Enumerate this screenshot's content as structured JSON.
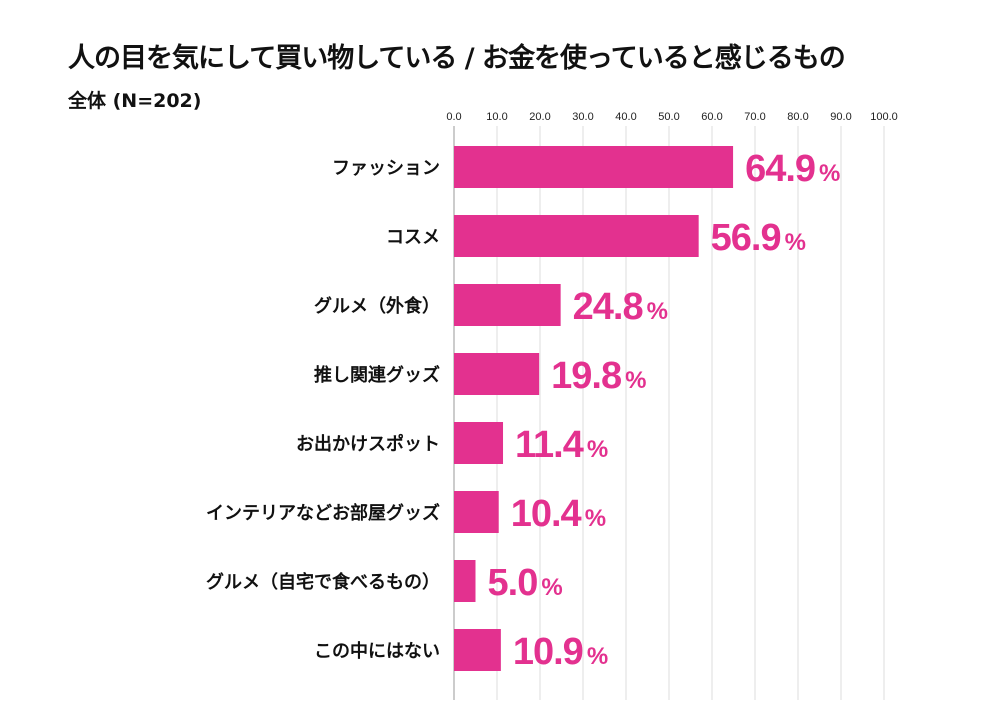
{
  "chart_data": {
    "type": "bar",
    "orientation": "horizontal",
    "title": "人の目を気にして買い物している / お金を使っていると感じるもの",
    "subtitle": "全体 (N=202)",
    "categories": [
      "ファッション",
      "コスメ",
      "グルメ（外食）",
      "推し関連グッズ",
      "お出かけスポット",
      "インテリアなどお部屋グッズ",
      "グルメ（自宅で食べるもの）",
      "この中にはない"
    ],
    "values": [
      64.9,
      56.9,
      24.8,
      19.8,
      11.4,
      10.4,
      5.0,
      10.9
    ],
    "value_suffix": "%",
    "xlim": [
      0,
      100
    ],
    "xticks": [
      "0.0",
      "10.0",
      "20.0",
      "30.0",
      "40.0",
      "50.0",
      "60.0",
      "70.0",
      "80.0",
      "90.0",
      "100.0"
    ],
    "axis_position": "top",
    "grid": true,
    "bar_color": "#e3318f",
    "label_color": "#e3318f",
    "xlabel": "",
    "ylabel": ""
  }
}
